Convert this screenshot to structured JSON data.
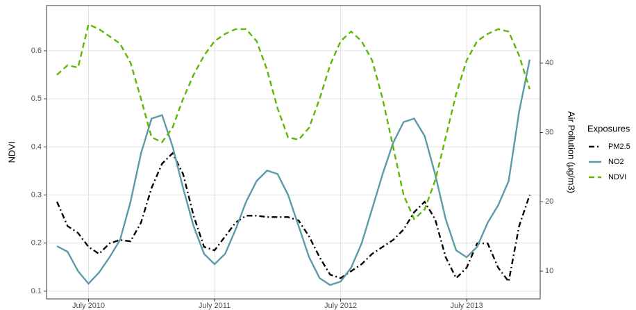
{
  "chart_data": {
    "type": "line",
    "y_label": "NDVI",
    "y2_label": "Air Pollution (µg/m3)",
    "legend_title": "Exposures",
    "legend": "right",
    "grid": true,
    "x": [
      "2010-04",
      "2010-05",
      "2010-06",
      "2010-07",
      "2010-08",
      "2010-09",
      "2010-10",
      "2010-11",
      "2010-12",
      "2011-01",
      "2011-02",
      "2011-03",
      "2011-04",
      "2011-05",
      "2011-06",
      "2011-07",
      "2011-08",
      "2011-09",
      "2011-10",
      "2011-11",
      "2011-12",
      "2012-01",
      "2012-02",
      "2012-03",
      "2012-04",
      "2012-05",
      "2012-06",
      "2012-07",
      "2012-08",
      "2012-09",
      "2012-10",
      "2012-11",
      "2012-12",
      "2013-01",
      "2013-02",
      "2013-03",
      "2013-04",
      "2013-05",
      "2013-06",
      "2013-07",
      "2013-08",
      "2013-09",
      "2013-10",
      "2013-11",
      "2013-12",
      "2014-01"
    ],
    "xlim": [
      "2010-03",
      "2014-02"
    ],
    "xticks": [
      {
        "value": "2010-07",
        "label": "July 2010"
      },
      {
        "value": "2011-07",
        "label": "July 2011"
      },
      {
        "value": "2012-07",
        "label": "July 2012"
      },
      {
        "value": "2013-07",
        "label": "July 2013"
      }
    ],
    "ylim": [
      0.084,
      0.694
    ],
    "yticks": [
      0.1,
      0.2,
      0.3,
      0.4,
      0.5,
      0.6
    ],
    "y2lim": [
      6.0,
      48.3
    ],
    "y2ticks": [
      10,
      20,
      30,
      40
    ],
    "series": [
      {
        "name": "PM2.5",
        "color": "#000000",
        "linestyle": "dashdot",
        "axis": "y2",
        "values": [
          20,
          16.5,
          15.5,
          13.5,
          12.5,
          14,
          14.5,
          14.3,
          17,
          22,
          25.5,
          27,
          24,
          18,
          13.5,
          13,
          15,
          17,
          18,
          18,
          17.8,
          17.8,
          17.8,
          17.3,
          15,
          12,
          9.5,
          9,
          10,
          11,
          12.5,
          13.5,
          14.5,
          16,
          18.5,
          20,
          17.5,
          12,
          9,
          10.5,
          14,
          14,
          10.5,
          8.5,
          16.5,
          21
        ]
      },
      {
        "name": "NO2",
        "color": "#5b9aa8",
        "linestyle": "solid",
        "axis": "y2",
        "values": [
          13.6,
          12.8,
          10,
          8.2,
          9.8,
          12,
          14.5,
          20,
          27,
          32,
          32.5,
          28,
          22,
          16.5,
          12.5,
          11,
          12.5,
          16,
          20,
          23,
          24.5,
          24,
          21,
          16.5,
          12,
          9,
          8,
          8.5,
          10.5,
          14,
          19,
          24,
          28.5,
          31.5,
          32,
          29.5,
          24,
          17.5,
          13,
          12,
          13.5,
          17,
          19.5,
          23,
          33,
          40.5
        ]
      },
      {
        "name": "NDVI",
        "color": "#5cb800",
        "linestyle": "dashed",
        "axis": "y",
        "values": [
          0.55,
          0.57,
          0.565,
          0.655,
          0.645,
          0.63,
          0.615,
          0.575,
          0.5,
          0.42,
          0.41,
          0.44,
          0.5,
          0.55,
          0.59,
          0.62,
          0.635,
          0.645,
          0.645,
          0.62,
          0.56,
          0.48,
          0.42,
          0.415,
          0.44,
          0.5,
          0.57,
          0.62,
          0.64,
          0.62,
          0.58,
          0.5,
          0.4,
          0.3,
          0.25,
          0.27,
          0.33,
          0.42,
          0.51,
          0.58,
          0.62,
          0.635,
          0.645,
          0.64,
          0.59,
          0.52
        ]
      }
    ]
  }
}
